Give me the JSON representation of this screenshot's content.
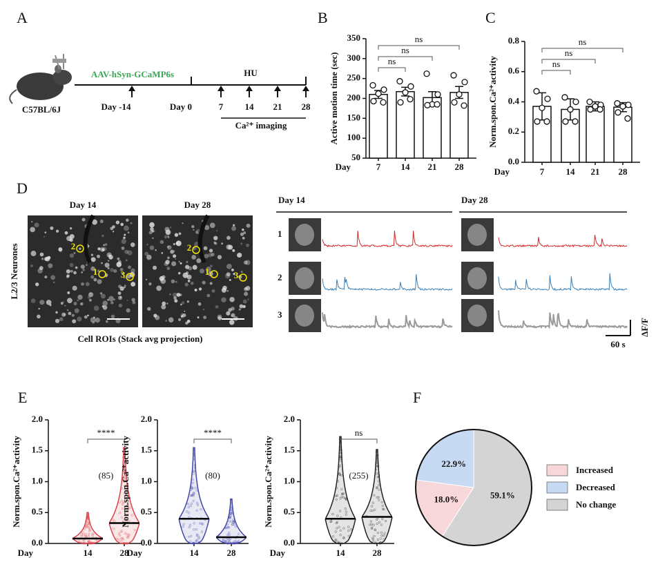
{
  "timeline": {
    "panel": "A",
    "strain": "C57BL/6J",
    "virus": "AAV-hSyn-GCaMP6s",
    "treatment": "HU",
    "days": [
      "Day -14",
      "Day 0",
      "7",
      "14",
      "21",
      "28"
    ],
    "imaging": "Ca²⁺ imaging"
  },
  "imaging": {
    "panel": "D",
    "side_label": "L2/3 Neurones",
    "image_days": [
      "Day 14",
      "Day 28"
    ],
    "caption": "Cell ROIs (Stack avg projection)",
    "rois": [
      "1",
      "2",
      "3"
    ],
    "trace_days": [
      "Day 14",
      "Day 28"
    ],
    "cells": [
      "1",
      "2",
      "3"
    ],
    "scale_y": "ΔF/F",
    "scale_x": "60 s"
  },
  "chart_data": [
    {
      "panel": "B",
      "type": "bar",
      "y_label": "Active motion time (sec)",
      "x_label": "Day",
      "categories": [
        "7",
        "14",
        "21",
        "28"
      ],
      "values": [
        210,
        217,
        202,
        215
      ],
      "errors": [
        10,
        11,
        15,
        15
      ],
      "points": [
        [
          233,
          222,
          212,
          193,
          190
        ],
        [
          243,
          230,
          215,
          190,
          198
        ],
        [
          262,
          210,
          185,
          183,
          185
        ],
        [
          258,
          241,
          210,
          190,
          182
        ]
      ],
      "color": "#ffffff",
      "ylim": [
        50,
        350
      ],
      "yticks": [
        50,
        100,
        150,
        200,
        250,
        300,
        350
      ],
      "significance": [
        {
          "pair": [
            "7",
            "14"
          ],
          "label": "ns"
        },
        {
          "pair": [
            "7",
            "21"
          ],
          "label": "ns"
        },
        {
          "pair": [
            "7",
            "28"
          ],
          "label": "ns"
        }
      ]
    },
    {
      "panel": "C",
      "type": "bar",
      "y_label": "Norm.spon.Ca²⁺activity",
      "x_label": "Day",
      "categories": [
        "7",
        "14",
        "21",
        "28"
      ],
      "values": [
        0.37,
        0.35,
        0.37,
        0.365
      ],
      "errors": [
        0.09,
        0.07,
        0.03,
        0.03
      ],
      "points": [
        [
          0.47,
          0.42,
          0.36,
          0.27,
          0.27
        ],
        [
          0.43,
          0.4,
          0.35,
          0.27,
          0.27
        ],
        [
          0.4,
          0.38,
          0.37,
          0.35,
          0.35
        ],
        [
          0.39,
          0.38,
          0.37,
          0.33,
          0.29
        ]
      ],
      "color": "#ffffff",
      "ylim": [
        0,
        0.8
      ],
      "yticks": [
        {
          "value": 0,
          "label": "0.0"
        },
        0.2,
        0.4,
        0.6,
        0.8
      ],
      "significance": [
        {
          "pair": [
            "7",
            "14"
          ],
          "label": "ns"
        },
        {
          "pair": [
            "7",
            "21"
          ],
          "label": "ns"
        },
        {
          "pair": [
            "7",
            "28"
          ],
          "label": "ns"
        }
      ]
    },
    {
      "panel": "E",
      "type": "violin",
      "y_label": "Norm.spon.Ca²⁺activity",
      "x_label": "Day",
      "categories": [
        "14",
        "28"
      ],
      "min": [
        0,
        0
      ],
      "median": [
        0.08,
        0.33
      ],
      "max": [
        0.5,
        1.55
      ],
      "n_label": "(85)",
      "color": "#d9434a",
      "ylim": [
        0,
        2
      ],
      "yticks": [
        {
          "value": 0,
          "label": "0.0"
        },
        0.5,
        {
          "value": 1,
          "label": "1.0"
        },
        1.5,
        {
          "value": 2,
          "label": "2.0"
        }
      ],
      "significance": [
        {
          "pair": [
            "14",
            "28"
          ],
          "label": "****"
        }
      ]
    },
    {
      "type": "violin",
      "y_label": "Norm.spon.Ca²⁺activity",
      "x_label": "Day",
      "categories": [
        "14",
        "28"
      ],
      "min": [
        0,
        0
      ],
      "median": [
        0.4,
        0.1
      ],
      "max": [
        1.55,
        0.72
      ],
      "n_label": "(80)",
      "color": "#4246a8",
      "ylim": [
        0,
        2
      ],
      "yticks": [
        {
          "value": 0,
          "label": "0.0"
        },
        0.5,
        {
          "value": 1,
          "label": "1.0"
        },
        1.5,
        {
          "value": 2,
          "label": "2.0"
        }
      ],
      "significance": [
        {
          "pair": [
            "14",
            "28"
          ],
          "label": "****"
        }
      ]
    },
    {
      "type": "violin",
      "y_label": "Norm.spon.Ca²⁺activity",
      "x_label": "Day",
      "categories": [
        "14",
        "28"
      ],
      "min": [
        0,
        0
      ],
      "median": [
        0.4,
        0.43
      ],
      "max": [
        1.73,
        1.52
      ],
      "n_label": "(255)",
      "color": "#222222",
      "ylim": [
        0,
        2
      ],
      "yticks": [
        {
          "value": 0,
          "label": "0.0"
        },
        0.5,
        {
          "value": 1,
          "label": "1.0"
        },
        1.5,
        {
          "value": 2,
          "label": "2.0"
        }
      ],
      "significance": [
        {
          "pair": [
            "14",
            "28"
          ],
          "label": "ns"
        }
      ]
    },
    {
      "panel": "F",
      "type": "pie",
      "categories": [
        "Increased",
        "Decreased",
        "No change"
      ],
      "values": [
        18.0,
        22.9,
        59.1
      ],
      "value_labels": [
        "18.0%",
        "22.9%",
        "59.1%"
      ],
      "colors": [
        "#f8d7da",
        "#c6dbf3",
        "#d4d4d4"
      ]
    }
  ]
}
